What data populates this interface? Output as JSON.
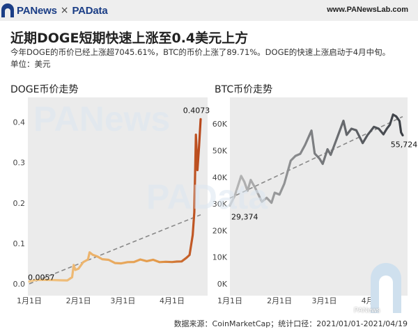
{
  "header": {
    "brand_left": "PANews",
    "separator": "×",
    "brand_right": "PAData",
    "url": "www.PANewsLab.com",
    "brand_color": "#1b3e86"
  },
  "title": "近期DOGE短期快速上涨至0.4美元上方",
  "subtitle": "今年DOGE的币价已经上涨超7045.61%，BTC的币价上涨了89.71%。DOGE的快速上涨启动于4月中旬。",
  "unit": "单位：美元",
  "watermark": "PANews",
  "watermark2": "PAData",
  "wechat_tag": "PANews",
  "footer": "数据来源：CoinMarketCap；统计口径：2021/01/01-2021/04/19",
  "chart_data": [
    {
      "type": "line",
      "title": "DOGE币价走势",
      "x_ticks": [
        "1月1日",
        "2月1日",
        "3月1日",
        "4月1日"
      ],
      "y_ticks": [
        "0.0",
        "0.1",
        "0.2",
        "0.3",
        "0.4"
      ],
      "ylim": [
        0,
        0.42
      ],
      "start_label": "0.0057",
      "end_label": "0.4073",
      "trendline": true,
      "colors": {
        "start": "#f3c98a",
        "mid": "#e39a4a",
        "end": "#b8481c",
        "trend": "#888888"
      },
      "series": [
        {
          "x": [
            "2021-01-01",
            "2021-01-05",
            "2021-01-10",
            "2021-01-15",
            "2021-01-20",
            "2021-01-25",
            "2021-01-28",
            "2021-01-29",
            "2021-01-30",
            "2021-02-01",
            "2021-02-04",
            "2021-02-07",
            "2021-02-08",
            "2021-02-10",
            "2021-02-13",
            "2021-02-16",
            "2021-02-20",
            "2021-02-24",
            "2021-02-28",
            "2021-03-04",
            "2021-03-08",
            "2021-03-12",
            "2021-03-16",
            "2021-03-20",
            "2021-03-24",
            "2021-03-28",
            "2021-04-01",
            "2021-04-04",
            "2021-04-07",
            "2021-04-10",
            "2021-04-12",
            "2021-04-13",
            "2021-04-14",
            "2021-04-15",
            "2021-04-16",
            "2021-04-17",
            "2021-04-18",
            "2021-04-19"
          ],
          "values": [
            0.0057,
            0.0095,
            0.0096,
            0.0095,
            0.0087,
            0.0084,
            0.0164,
            0.0466,
            0.0344,
            0.0373,
            0.0536,
            0.0603,
            0.078,
            0.0718,
            0.0675,
            0.061,
            0.0594,
            0.0515,
            0.0506,
            0.0537,
            0.054,
            0.0602,
            0.0562,
            0.0595,
            0.0537,
            0.0545,
            0.0539,
            0.055,
            0.0554,
            0.0642,
            0.0714,
            0.0956,
            0.1206,
            0.1768,
            0.3691,
            0.2814,
            0.3396,
            0.4073
          ]
        }
      ]
    },
    {
      "type": "line",
      "title": "BTC币价走势",
      "x_ticks": [
        "1月1日",
        "2月1日",
        "3月1日",
        "4月1日"
      ],
      "y_ticks": [
        "0K",
        "10K",
        "20K",
        "30K",
        "40K",
        "50K",
        "60K"
      ],
      "ylim": [
        0,
        65000
      ],
      "start_label": "29,374",
      "end_label": "55,724",
      "trendline": true,
      "colors": {
        "start": "#b9b9b9",
        "end": "#3b3f45",
        "trend": "#888888"
      },
      "series": [
        {
          "x": [
            "2021-01-01",
            "2021-01-04",
            "2021-01-08",
            "2021-01-10",
            "2021-01-12",
            "2021-01-14",
            "2021-01-17",
            "2021-01-21",
            "2021-01-24",
            "2021-01-27",
            "2021-01-29",
            "2021-02-01",
            "2021-02-04",
            "2021-02-08",
            "2021-02-11",
            "2021-02-14",
            "2021-02-17",
            "2021-02-21",
            "2021-02-23",
            "2021-02-26",
            "2021-02-28",
            "2021-03-03",
            "2021-03-05",
            "2021-03-09",
            "2021-03-13",
            "2021-03-15",
            "2021-03-18",
            "2021-03-21",
            "2021-03-25",
            "2021-03-28",
            "2021-04-01",
            "2021-04-04",
            "2021-04-07",
            "2021-04-09",
            "2021-04-11",
            "2021-04-13",
            "2021-04-15",
            "2021-04-17",
            "2021-04-18",
            "2021-04-19"
          ],
          "values": [
            29374,
            33000,
            40500,
            38300,
            34900,
            39000,
            35800,
            30800,
            32300,
            30400,
            34200,
            33500,
            37600,
            46200,
            48000,
            48800,
            52100,
            57500,
            48900,
            47000,
            45000,
            50500,
            48400,
            54800,
            61200,
            55900,
            58200,
            57600,
            52800,
            55800,
            58900,
            58200,
            56100,
            58100,
            59700,
            63500,
            62800,
            61100,
            56800,
            55724
          ]
        }
      ]
    }
  ]
}
